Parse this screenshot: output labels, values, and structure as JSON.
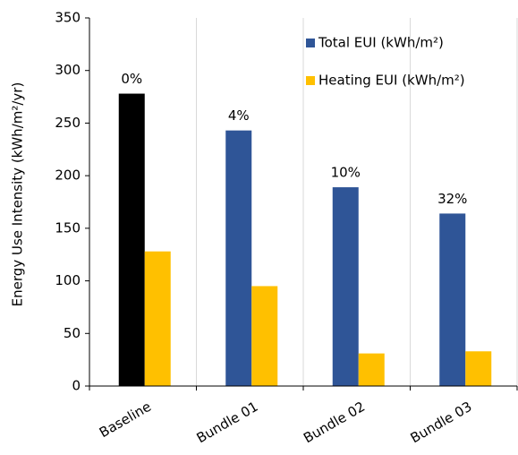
{
  "chart_data": {
    "type": "bar",
    "y_label": "Energy Use Intensity (kWh/m²/yr)",
    "categories": [
      "Baseline",
      "Bundle 01",
      "Bundle 02",
      "Bundle 03"
    ],
    "series": [
      {
        "name": "Total EUI (kWh/m²)",
        "color": "#2f5597",
        "colors": [
          "#000000",
          "#2f5597",
          "#2f5597",
          "#2f5597"
        ],
        "values": [
          278,
          243,
          189,
          164
        ]
      },
      {
        "name": "Heating EUI (kWh/m²)",
        "color": "#ffc000",
        "values": [
          128,
          95,
          31,
          33
        ]
      }
    ],
    "annotations": [
      "0%",
      "4%",
      "10%",
      "32%"
    ],
    "ylim": [
      0,
      350
    ],
    "yticks": [
      0,
      50,
      100,
      150,
      200,
      250,
      300,
      350
    ],
    "grid": "x",
    "legend": "top-right"
  }
}
